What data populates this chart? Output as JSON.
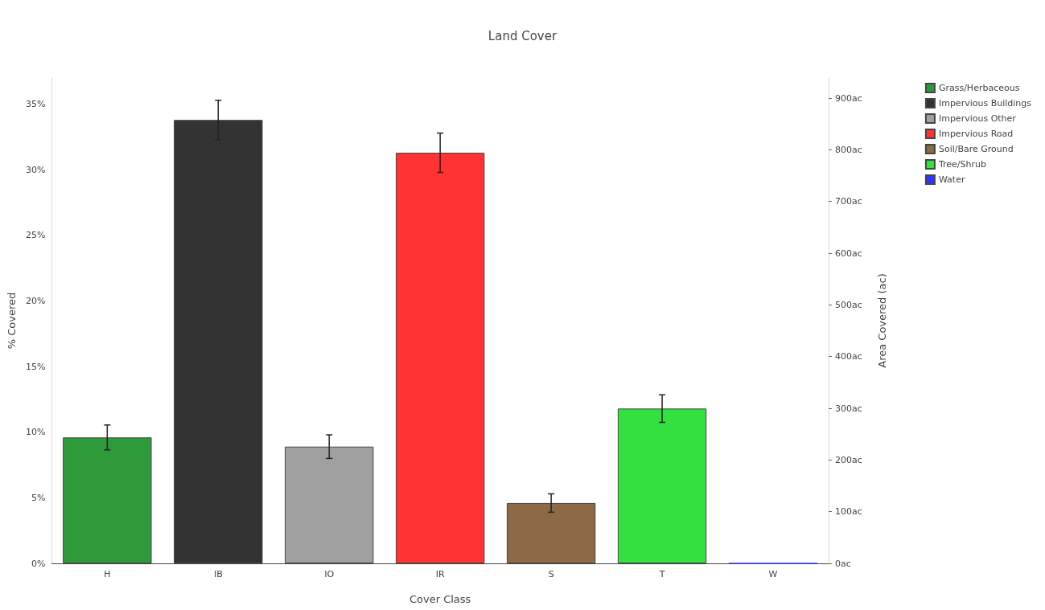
{
  "chart_data": {
    "type": "bar",
    "title": "Land Cover",
    "xlabel": "Cover Class",
    "ylabel": "% Covered",
    "y2label": "Area Covered (ac)",
    "categories": [
      "H",
      "IB",
      "IO",
      "IR",
      "S",
      "T",
      "W"
    ],
    "stacked": true,
    "series": [
      {
        "name": "Grass/Herbaceous",
        "color": "#2e9a3a",
        "values": [
          9.6,
          null,
          null,
          null,
          null,
          null,
          null
        ],
        "errors": [
          0.95,
          null,
          null,
          null,
          null,
          null,
          null
        ]
      },
      {
        "name": "Impervious Buildings",
        "color": "#333333",
        "values": [
          null,
          33.8,
          null,
          null,
          null,
          null,
          null
        ],
        "errors": [
          null,
          1.5,
          null,
          null,
          null,
          null,
          null
        ]
      },
      {
        "name": "Impervious Other",
        "color": "#a0a0a0",
        "values": [
          null,
          null,
          8.9,
          null,
          null,
          null,
          null
        ],
        "errors": [
          null,
          null,
          0.9,
          null,
          null,
          null,
          null
        ]
      },
      {
        "name": "Impervious Road",
        "color": "#ff3333",
        "values": [
          null,
          null,
          null,
          31.3,
          null,
          null,
          null
        ],
        "errors": [
          null,
          null,
          null,
          1.5,
          null,
          null,
          null
        ]
      },
      {
        "name": "Soil/Bare Ground",
        "color": "#8b6a45",
        "values": [
          null,
          null,
          null,
          null,
          4.6,
          null,
          null
        ],
        "errors": [
          null,
          null,
          null,
          null,
          0.7,
          null,
          null
        ]
      },
      {
        "name": "Tree/Shrub",
        "color": "#33e040",
        "values": [
          null,
          null,
          null,
          null,
          null,
          11.8,
          null
        ],
        "errors": [
          null,
          null,
          null,
          null,
          null,
          1.05,
          null
        ]
      },
      {
        "name": "Water",
        "color": "#3333ff",
        "values": [
          null,
          null,
          null,
          null,
          null,
          null,
          0
        ],
        "errors": [
          null,
          null,
          null,
          null,
          null,
          null,
          null
        ]
      }
    ],
    "ylim": [
      0,
      37
    ],
    "yticks": [
      {
        "value": 0,
        "label": "0%"
      },
      {
        "value": 5,
        "label": "5%"
      },
      {
        "value": 10,
        "label": "10%"
      },
      {
        "value": 15,
        "label": "15%"
      },
      {
        "value": 20,
        "label": "20%"
      },
      {
        "value": 25,
        "label": "25%"
      },
      {
        "value": 30,
        "label": "30%"
      },
      {
        "value": 35,
        "label": "35%"
      }
    ],
    "y2lim": [
      0,
      939
    ],
    "y2ticks": [
      {
        "value": 0,
        "label": "0ac"
      },
      {
        "value": 100,
        "label": "100ac"
      },
      {
        "value": 200,
        "label": "200ac"
      },
      {
        "value": 300,
        "label": "300ac"
      },
      {
        "value": 400,
        "label": "400ac"
      },
      {
        "value": 500,
        "label": "500ac"
      },
      {
        "value": 600,
        "label": "600ac"
      },
      {
        "value": 700,
        "label": "700ac"
      },
      {
        "value": 800,
        "label": "800ac"
      },
      {
        "value": 900,
        "label": "900ac"
      }
    ],
    "legend": "top right"
  }
}
